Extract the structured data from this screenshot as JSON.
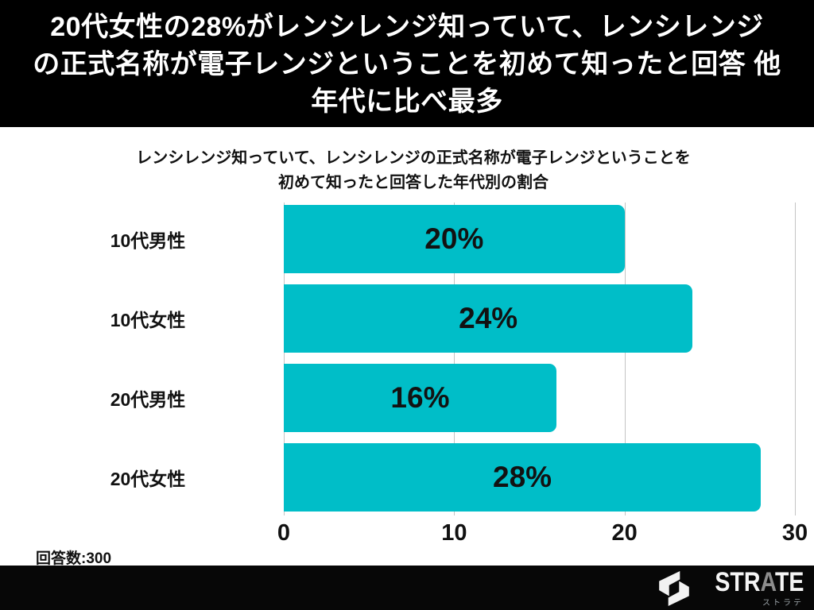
{
  "header": {
    "lines": [
      "20代女性の28%がレンシレンジ知っていて、レンシレンジ",
      "の正式名称が電子レンジということを初めて知ったと回答 他",
      "年代に比べ最多"
    ]
  },
  "chart_title": {
    "lines": [
      "レンシレンジ知っていて、レンシレンジの正式名称が電子レンジということを",
      "初めて知ったと回答した年代別の割合"
    ]
  },
  "chart_data": {
    "type": "bar",
    "orientation": "horizontal",
    "title": "レンシレンジ知っていて、レンシレンジの正式名称が電子レンジということを初めて知ったと回答した年代別の割合",
    "categories": [
      "10代男性",
      "10代女性",
      "20代男性",
      "20代女性"
    ],
    "values": [
      20,
      24,
      16,
      28
    ],
    "value_labels": [
      "20%",
      "24%",
      "16%",
      "28%"
    ],
    "xlabel": "",
    "ylabel": "",
    "xlim": [
      0,
      30
    ],
    "x_ticks": [
      "0",
      "10",
      "20",
      "30"
    ],
    "grid": true,
    "legend": false,
    "bar_color": "#00bec8",
    "value_label_color": "#121212",
    "gridline_color": "#c4c4c4"
  },
  "footer_note": "回答数:300",
  "footer_logo": {
    "brand_prefix": "STR",
    "brand_a": "A",
    "brand_suffix": "TE",
    "subtext": "ストラテ"
  }
}
